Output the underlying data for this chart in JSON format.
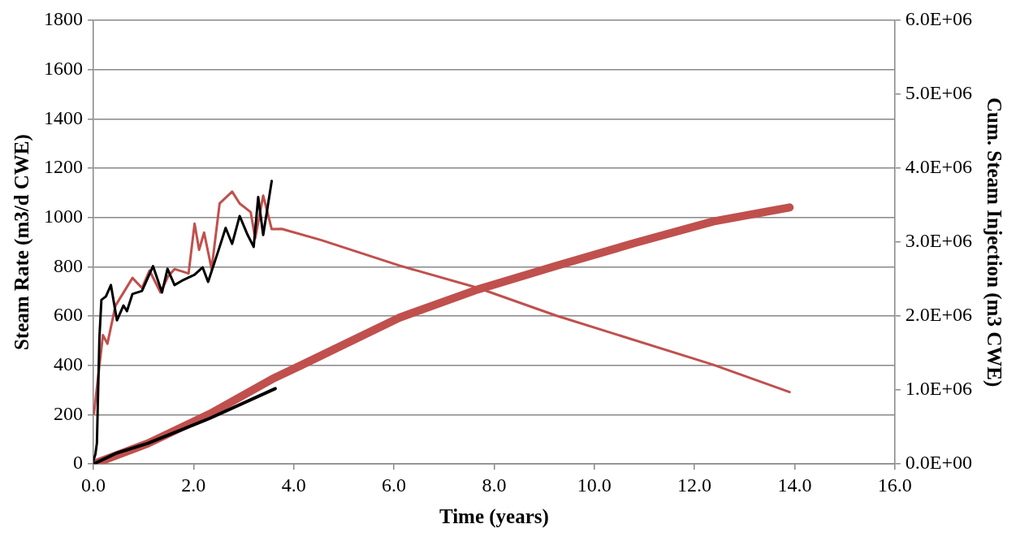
{
  "chart_data": {
    "type": "line",
    "xlabel": "Time (years)",
    "ylabel": "Steam Rate (m3/d CWE)",
    "y2label": "Cum. Steam Injection (m3 CWE)",
    "xlim": [
      0,
      16
    ],
    "xticks": [
      {
        "value": 0,
        "label": "0.0"
      },
      {
        "value": 2,
        "label": "2.0"
      },
      {
        "value": 4,
        "label": "4.0"
      },
      {
        "value": 6,
        "label": "6.0"
      },
      {
        "value": 8,
        "label": "8.0"
      },
      {
        "value": 10,
        "label": "10.0"
      },
      {
        "value": 12,
        "label": "12.0"
      },
      {
        "value": 14,
        "label": "14.0"
      },
      {
        "value": 16,
        "label": "16.0"
      }
    ],
    "ylim": [
      0,
      1800
    ],
    "yticks": [
      0,
      200,
      400,
      600,
      800,
      1000,
      1200,
      1400,
      1600,
      1800
    ],
    "y2lim": [
      0,
      6000000
    ],
    "y2ticks": [
      {
        "value": 0,
        "label": "0.0E+00"
      },
      {
        "value": 1000000,
        "label": "1.0E+06"
      },
      {
        "value": 2000000,
        "label": "2.0E+06"
      },
      {
        "value": 3000000,
        "label": "3.0E+06"
      },
      {
        "value": 4000000,
        "label": "4.0E+06"
      },
      {
        "value": 5000000,
        "label": "5.0E+06"
      },
      {
        "value": 6000000,
        "label": "6.0E+06"
      }
    ],
    "grid": "y",
    "marker": "none",
    "line_style": "solid",
    "series": [
      {
        "color": "#000000",
        "x": [
          0,
          0.04,
          0.07,
          0.12,
          0.16,
          0.25,
          0.35,
          0.47,
          0.6,
          0.67,
          0.78,
          0.97,
          1.19,
          1.37,
          1.48,
          1.62,
          1.77,
          2.02,
          2.18,
          2.29,
          2.52,
          2.64,
          2.77,
          2.92,
          3.08,
          3.2,
          3.29,
          3.39,
          3.56
        ],
        "values": [
          14,
          40,
          85,
          512,
          666,
          680,
          726,
          583,
          643,
          620,
          690,
          702,
          803,
          696,
          792,
          726,
          744,
          768,
          798,
          739,
          881,
          958,
          893,
          1006,
          929,
          881,
          1083,
          929,
          1148
        ]
      },
      {
        "color": "#c0504d",
        "x": [
          0.01,
          0.19,
          0.28,
          0.44,
          0.78,
          0.97,
          1.12,
          1.34,
          1.49,
          1.62,
          1.9,
          2.02,
          2.11,
          2.21,
          2.36,
          2.52,
          2.77,
          2.92,
          3.14,
          3.23,
          3.39,
          3.56,
          3.76,
          4.54,
          6.11,
          7.67,
          9.24,
          12.37,
          13.9
        ],
        "values": [
          203,
          523,
          488,
          642,
          755,
          714,
          785,
          696,
          761,
          791,
          773,
          975,
          869,
          939,
          791,
          1057,
          1105,
          1057,
          1022,
          915,
          1089,
          953,
          954,
          909,
          805,
          715,
          602,
          403,
          292
        ]
      },
      {
        "color": "#000000",
        "axis": "y2",
        "x": [
          0,
          0.47,
          1.09,
          2.33,
          3.63
        ],
        "values": [
          0,
          150000,
          280000,
          620000,
          1020000
        ]
      },
      {
        "color": "#c0504d",
        "axis": "y2",
        "x": [
          0,
          1.09,
          2.33,
          3.57,
          4.13,
          6.11,
          7.67,
          9.24,
          10.81,
          12.37,
          13.9
        ],
        "values": [
          0,
          280000,
          680000,
          1150000,
          1330000,
          1980000,
          2360000,
          2680000,
          2990000,
          3280000,
          3470000
        ]
      }
    ]
  }
}
